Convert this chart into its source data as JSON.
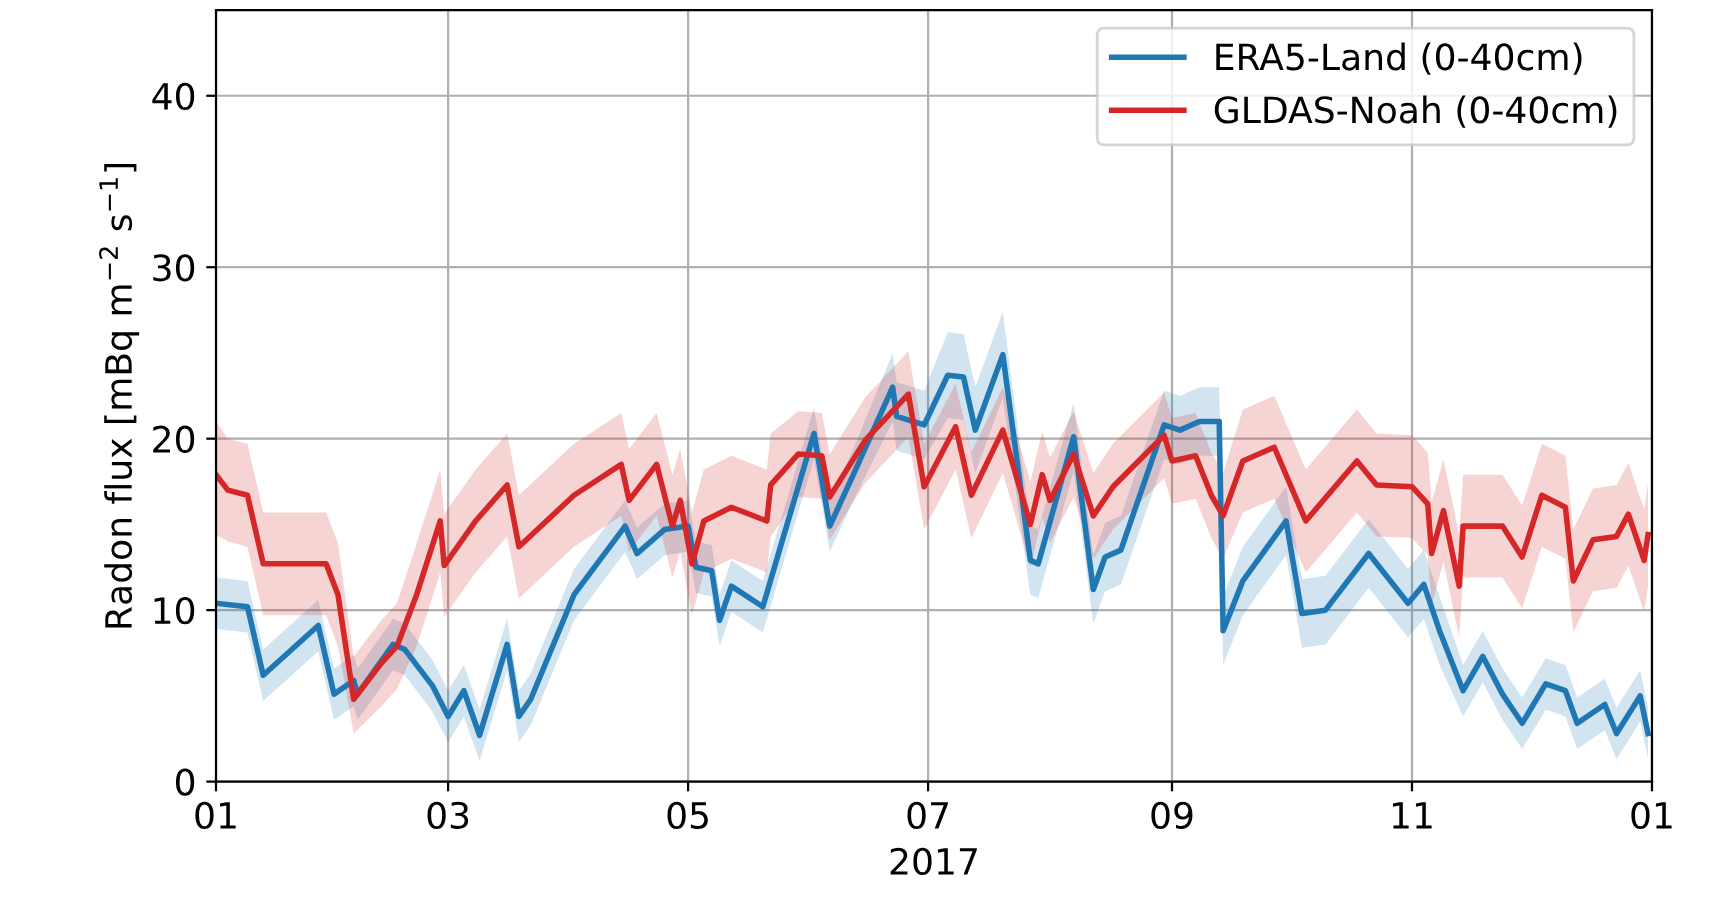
{
  "chart_data": {
    "type": "line",
    "xlabel": "2017",
    "ylabel": "Radon flux [mBq m$^{−2}$ s$^{−1}$]",
    "xlim": [
      "2017-01-01",
      "2018-01-01"
    ],
    "xticks": [
      {
        "value": "2017-01-01",
        "label": "01"
      },
      {
        "value": "2017-03-01",
        "label": "03"
      },
      {
        "value": "2017-05-01",
        "label": "05"
      },
      {
        "value": "2017-07-01",
        "label": "07"
      },
      {
        "value": "2017-09-01",
        "label": "09"
      },
      {
        "value": "2017-11-01",
        "label": "11"
      },
      {
        "value": "2018-01-01",
        "label": "01"
      }
    ],
    "ylim": [
      0,
      45
    ],
    "yticks": [
      0,
      10,
      20,
      30,
      40
    ],
    "grid": true,
    "legend": "top right",
    "series": [
      {
        "name": "ERA5-Land (0-40cm)",
        "color": "#1f77b4",
        "x": [
          "2017-01-01",
          "2017-01-09",
          "2017-01-13",
          "2017-01-27",
          "2017-01-31",
          "2017-02-05",
          "2017-02-06",
          "2017-02-15",
          "2017-02-18",
          "2017-02-25",
          "2017-03-01",
          "2017-03-05",
          "2017-03-09",
          "2017-03-16",
          "2017-03-19",
          "2017-03-22",
          "2017-04-02",
          "2017-04-15",
          "2017-04-18",
          "2017-04-25",
          "2017-05-01",
          "2017-05-03",
          "2017-05-07",
          "2017-05-09",
          "2017-05-12",
          "2017-05-20",
          "2017-05-25",
          "2017-06-02",
          "2017-06-06",
          "2017-06-12",
          "2017-06-22",
          "2017-06-23",
          "2017-06-30",
          "2017-07-06",
          "2017-07-10",
          "2017-07-13",
          "2017-07-20",
          "2017-07-27",
          "2017-07-29",
          "2017-08-07",
          "2017-08-12",
          "2017-08-15",
          "2017-08-19",
          "2017-08-30",
          "2017-09-03",
          "2017-09-08",
          "2017-09-13",
          "2017-09-14",
          "2017-09-19",
          "2017-09-30",
          "2017-10-04",
          "2017-10-10",
          "2017-10-21",
          "2017-10-31",
          "2017-11-04",
          "2017-11-08",
          "2017-11-14",
          "2017-11-19",
          "2017-11-24",
          "2017-11-29",
          "2017-12-05",
          "2017-12-10",
          "2017-12-13",
          "2017-12-20",
          "2017-12-23",
          "2017-12-29",
          "2017-12-31"
        ],
        "values": [
          10.4,
          10.2,
          6.2,
          9.1,
          5.1,
          5.9,
          5.1,
          8.0,
          7.7,
          5.6,
          3.8,
          5.3,
          2.7,
          8.0,
          3.8,
          4.8,
          10.9,
          14.9,
          13.3,
          14.7,
          14.9,
          12.5,
          12.3,
          9.4,
          11.4,
          10.2,
          14.1,
          20.3,
          14.9,
          17.9,
          23.0,
          21.3,
          20.8,
          23.7,
          23.6,
          20.5,
          24.9,
          12.9,
          12.7,
          20.1,
          11.2,
          13.1,
          13.5,
          20.8,
          20.5,
          21.0,
          21.0,
          8.8,
          11.7,
          15.2,
          9.8,
          10.0,
          13.3,
          10.4,
          11.5,
          8.8,
          5.3,
          7.3,
          5.1,
          3.4,
          5.7,
          5.3,
          3.4,
          4.5,
          2.8,
          5.0,
          2.8
        ],
        "lower": [
          8.9,
          8.7,
          4.7,
          7.6,
          3.6,
          4.4,
          3.6,
          6.5,
          6.2,
          4.1,
          2.3,
          3.8,
          1.2,
          6.5,
          2.3,
          3.3,
          9.4,
          13.4,
          11.8,
          13.2,
          13.4,
          11.0,
          10.8,
          7.9,
          9.9,
          8.7,
          12.6,
          18.8,
          13.4,
          16.4,
          21.0,
          19.3,
          18.8,
          21.2,
          21.1,
          18.0,
          22.4,
          10.9,
          10.7,
          18.1,
          9.2,
          11.1,
          11.5,
          18.8,
          18.5,
          19.0,
          19.0,
          6.8,
          9.7,
          13.2,
          7.8,
          8.0,
          11.3,
          8.4,
          9.5,
          6.8,
          3.8,
          5.8,
          3.6,
          1.9,
          4.2,
          3.8,
          1.9,
          3.0,
          1.3,
          3.5,
          1.3
        ],
        "upper": [
          11.9,
          11.7,
          7.7,
          10.6,
          6.6,
          7.4,
          6.6,
          9.5,
          9.2,
          7.1,
          5.3,
          6.8,
          4.2,
          9.5,
          5.3,
          6.3,
          12.4,
          16.4,
          14.8,
          16.2,
          16.4,
          14.0,
          13.8,
          10.9,
          12.9,
          11.7,
          15.6,
          21.8,
          16.4,
          19.4,
          25.0,
          23.3,
          22.8,
          26.2,
          26.1,
          23.0,
          27.4,
          14.9,
          14.7,
          22.1,
          13.2,
          15.1,
          15.5,
          22.8,
          22.5,
          23.0,
          23.0,
          10.8,
          13.7,
          17.2,
          11.8,
          12.0,
          15.3,
          12.4,
          13.5,
          10.8,
          6.8,
          8.8,
          6.6,
          4.9,
          7.2,
          6.8,
          4.9,
          6.0,
          4.3,
          6.5,
          4.3
        ]
      },
      {
        "name": "GLDAS-Noah (0-40cm)",
        "color": "#d62728",
        "x": [
          "2017-01-01",
          "2017-01-04",
          "2017-01-09",
          "2017-01-13",
          "2017-01-29",
          "2017-02-01",
          "2017-02-05",
          "2017-02-12",
          "2017-02-16",
          "2017-02-21",
          "2017-02-27",
          "2017-02-28",
          "2017-03-08",
          "2017-03-16",
          "2017-03-19",
          "2017-04-02",
          "2017-04-14",
          "2017-04-16",
          "2017-04-23",
          "2017-04-27",
          "2017-04-29",
          "2017-05-02",
          "2017-05-05",
          "2017-05-12",
          "2017-05-21",
          "2017-05-22",
          "2017-05-29",
          "2017-06-04",
          "2017-06-06",
          "2017-06-15",
          "2017-06-26",
          "2017-06-30",
          "2017-07-08",
          "2017-07-12",
          "2017-07-20",
          "2017-07-27",
          "2017-07-30",
          "2017-08-01",
          "2017-08-07",
          "2017-08-12",
          "2017-08-17",
          "2017-08-30",
          "2017-09-01",
          "2017-09-07",
          "2017-09-11",
          "2017-09-14",
          "2017-09-19",
          "2017-09-27",
          "2017-10-05",
          "2017-10-18",
          "2017-10-23",
          "2017-11-01",
          "2017-11-05",
          "2017-11-06",
          "2017-11-09",
          "2017-11-13",
          "2017-11-14",
          "2017-11-24",
          "2017-11-29",
          "2017-12-04",
          "2017-12-10",
          "2017-12-12",
          "2017-12-17",
          "2017-12-23",
          "2017-12-26",
          "2017-12-30",
          "2017-12-31"
        ],
        "values": [
          17.9,
          17.0,
          16.7,
          12.7,
          12.7,
          10.9,
          4.8,
          6.9,
          7.9,
          10.9,
          15.2,
          12.6,
          15.2,
          17.3,
          13.7,
          16.7,
          18.5,
          16.4,
          18.5,
          14.9,
          16.4,
          12.7,
          15.2,
          16.0,
          15.2,
          17.3,
          19.1,
          19.0,
          16.6,
          19.9,
          22.6,
          17.2,
          20.7,
          16.7,
          20.5,
          15.0,
          17.9,
          16.4,
          19.1,
          15.5,
          17.2,
          20.2,
          18.7,
          19.0,
          16.7,
          15.5,
          18.7,
          19.5,
          15.2,
          18.7,
          17.3,
          17.2,
          16.2,
          13.3,
          15.8,
          11.4,
          14.9,
          14.9,
          13.1,
          16.7,
          16.0,
          11.7,
          14.1,
          14.3,
          15.6,
          12.9,
          14.4
        ],
        "lower": [
          14.4,
          14.0,
          13.7,
          9.7,
          9.7,
          7.9,
          2.8,
          4.4,
          5.4,
          7.9,
          12.2,
          9.6,
          12.2,
          14.3,
          10.7,
          13.7,
          15.5,
          13.4,
          15.5,
          11.9,
          13.4,
          9.7,
          12.2,
          13.0,
          12.2,
          14.3,
          16.6,
          16.5,
          14.1,
          17.4,
          20.1,
          14.7,
          18.2,
          14.2,
          18.0,
          12.5,
          15.4,
          13.9,
          16.6,
          13.0,
          14.7,
          17.7,
          16.2,
          16.5,
          14.2,
          13.0,
          15.7,
          16.5,
          12.2,
          15.7,
          14.3,
          14.2,
          13.2,
          10.3,
          12.8,
          8.4,
          11.9,
          11.9,
          10.1,
          13.7,
          13.0,
          8.7,
          11.1,
          11.3,
          12.6,
          9.9,
          11.4
        ],
        "upper": [
          21.0,
          20.0,
          19.7,
          15.7,
          15.7,
          13.9,
          7.3,
          9.4,
          10.4,
          13.9,
          18.2,
          15.6,
          18.2,
          20.3,
          16.7,
          19.7,
          21.5,
          19.4,
          21.5,
          17.9,
          19.4,
          15.7,
          18.2,
          19.0,
          18.2,
          20.3,
          21.6,
          21.5,
          19.1,
          22.4,
          25.1,
          19.7,
          23.2,
          19.2,
          23.0,
          17.5,
          20.4,
          18.9,
          21.6,
          18.0,
          19.7,
          22.7,
          21.2,
          21.5,
          19.2,
          18.0,
          21.7,
          22.5,
          18.2,
          21.7,
          20.3,
          20.2,
          19.2,
          16.3,
          18.8,
          14.4,
          17.9,
          17.9,
          16.1,
          19.7,
          19.0,
          14.7,
          17.1,
          17.3,
          18.6,
          15.9,
          17.4
        ]
      }
    ]
  }
}
